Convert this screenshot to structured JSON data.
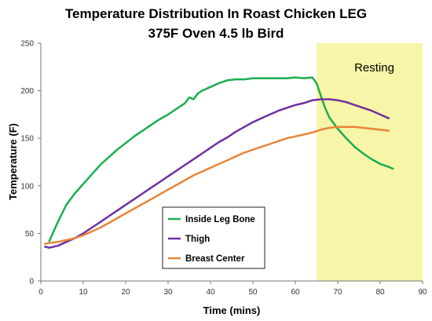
{
  "chart_data": {
    "type": "line",
    "title": "Temperature Distribution In Roast Chicken LEG",
    "subtitle": "375F Oven 4.5 lb Bird",
    "xlabel": "Time (mins)",
    "ylabel": "Temperature (F)",
    "xlim": [
      0,
      90
    ],
    "ylim": [
      0,
      250
    ],
    "xticks": [
      0,
      10,
      20,
      30,
      40,
      50,
      60,
      70,
      80,
      90
    ],
    "yticks": [
      0,
      50,
      100,
      150,
      200,
      250
    ],
    "grid": false,
    "legend_position": "bottom-center",
    "shaded_region": {
      "label": "Resting",
      "x_start": 65,
      "x_end": 90,
      "color": "#f7f5a8"
    },
    "series": [
      {
        "name": "Inside Leg Bone",
        "color": "#1aae4e",
        "x": [
          2,
          4,
          6,
          8,
          10,
          12,
          14,
          16,
          18,
          20,
          22,
          24,
          26,
          28,
          30,
          32,
          34,
          35,
          36,
          37,
          38,
          40,
          42,
          44,
          46,
          48,
          50,
          52,
          54,
          56,
          58,
          60,
          62,
          64,
          65,
          66,
          67,
          68,
          70,
          72,
          74,
          76,
          78,
          80,
          82,
          83
        ],
        "y": [
          42,
          62,
          80,
          92,
          102,
          112,
          122,
          130,
          138,
          145,
          152,
          158,
          164,
          170,
          175,
          181,
          187,
          193,
          191,
          197,
          200,
          204,
          208,
          211,
          212,
          212,
          213,
          213,
          213,
          213,
          213,
          214,
          213,
          214,
          208,
          195,
          182,
          172,
          160,
          150,
          141,
          134,
          128,
          123,
          120,
          118
        ]
      },
      {
        "name": "Thigh",
        "color": "#7030a0",
        "x": [
          1,
          2,
          4,
          6,
          8,
          10,
          12,
          14,
          16,
          18,
          20,
          22,
          24,
          26,
          28,
          30,
          32,
          34,
          36,
          38,
          40,
          42,
          44,
          46,
          48,
          50,
          52,
          54,
          56,
          58,
          60,
          62,
          64,
          66,
          68,
          70,
          72,
          74,
          76,
          78,
          80,
          82
        ],
        "y": [
          36,
          35,
          37,
          41,
          45,
          50,
          56,
          62,
          68,
          74,
          80,
          86,
          92,
          98,
          104,
          110,
          116,
          122,
          128,
          134,
          140,
          146,
          151,
          157,
          162,
          167,
          171,
          175,
          179,
          182,
          185,
          187,
          190,
          191,
          191,
          190,
          188,
          185,
          182,
          179,
          175,
          171
        ]
      },
      {
        "name": "Breast Center",
        "color": "#e8853a",
        "x": [
          1,
          2,
          4,
          6,
          8,
          10,
          12,
          14,
          16,
          18,
          20,
          22,
          24,
          26,
          28,
          30,
          32,
          34,
          36,
          38,
          40,
          42,
          44,
          46,
          48,
          50,
          52,
          54,
          56,
          58,
          60,
          62,
          64,
          66,
          68,
          70,
          72,
          74,
          76,
          78,
          80,
          82
        ],
        "y": [
          39,
          40,
          41,
          43,
          45,
          48,
          52,
          56,
          61,
          66,
          71,
          76,
          81,
          86,
          91,
          96,
          101,
          106,
          111,
          115,
          119,
          123,
          127,
          131,
          135,
          138,
          141,
          144,
          147,
          150,
          152,
          154,
          156,
          159,
          161,
          162,
          162,
          162,
          161,
          160,
          159,
          158
        ]
      }
    ]
  }
}
